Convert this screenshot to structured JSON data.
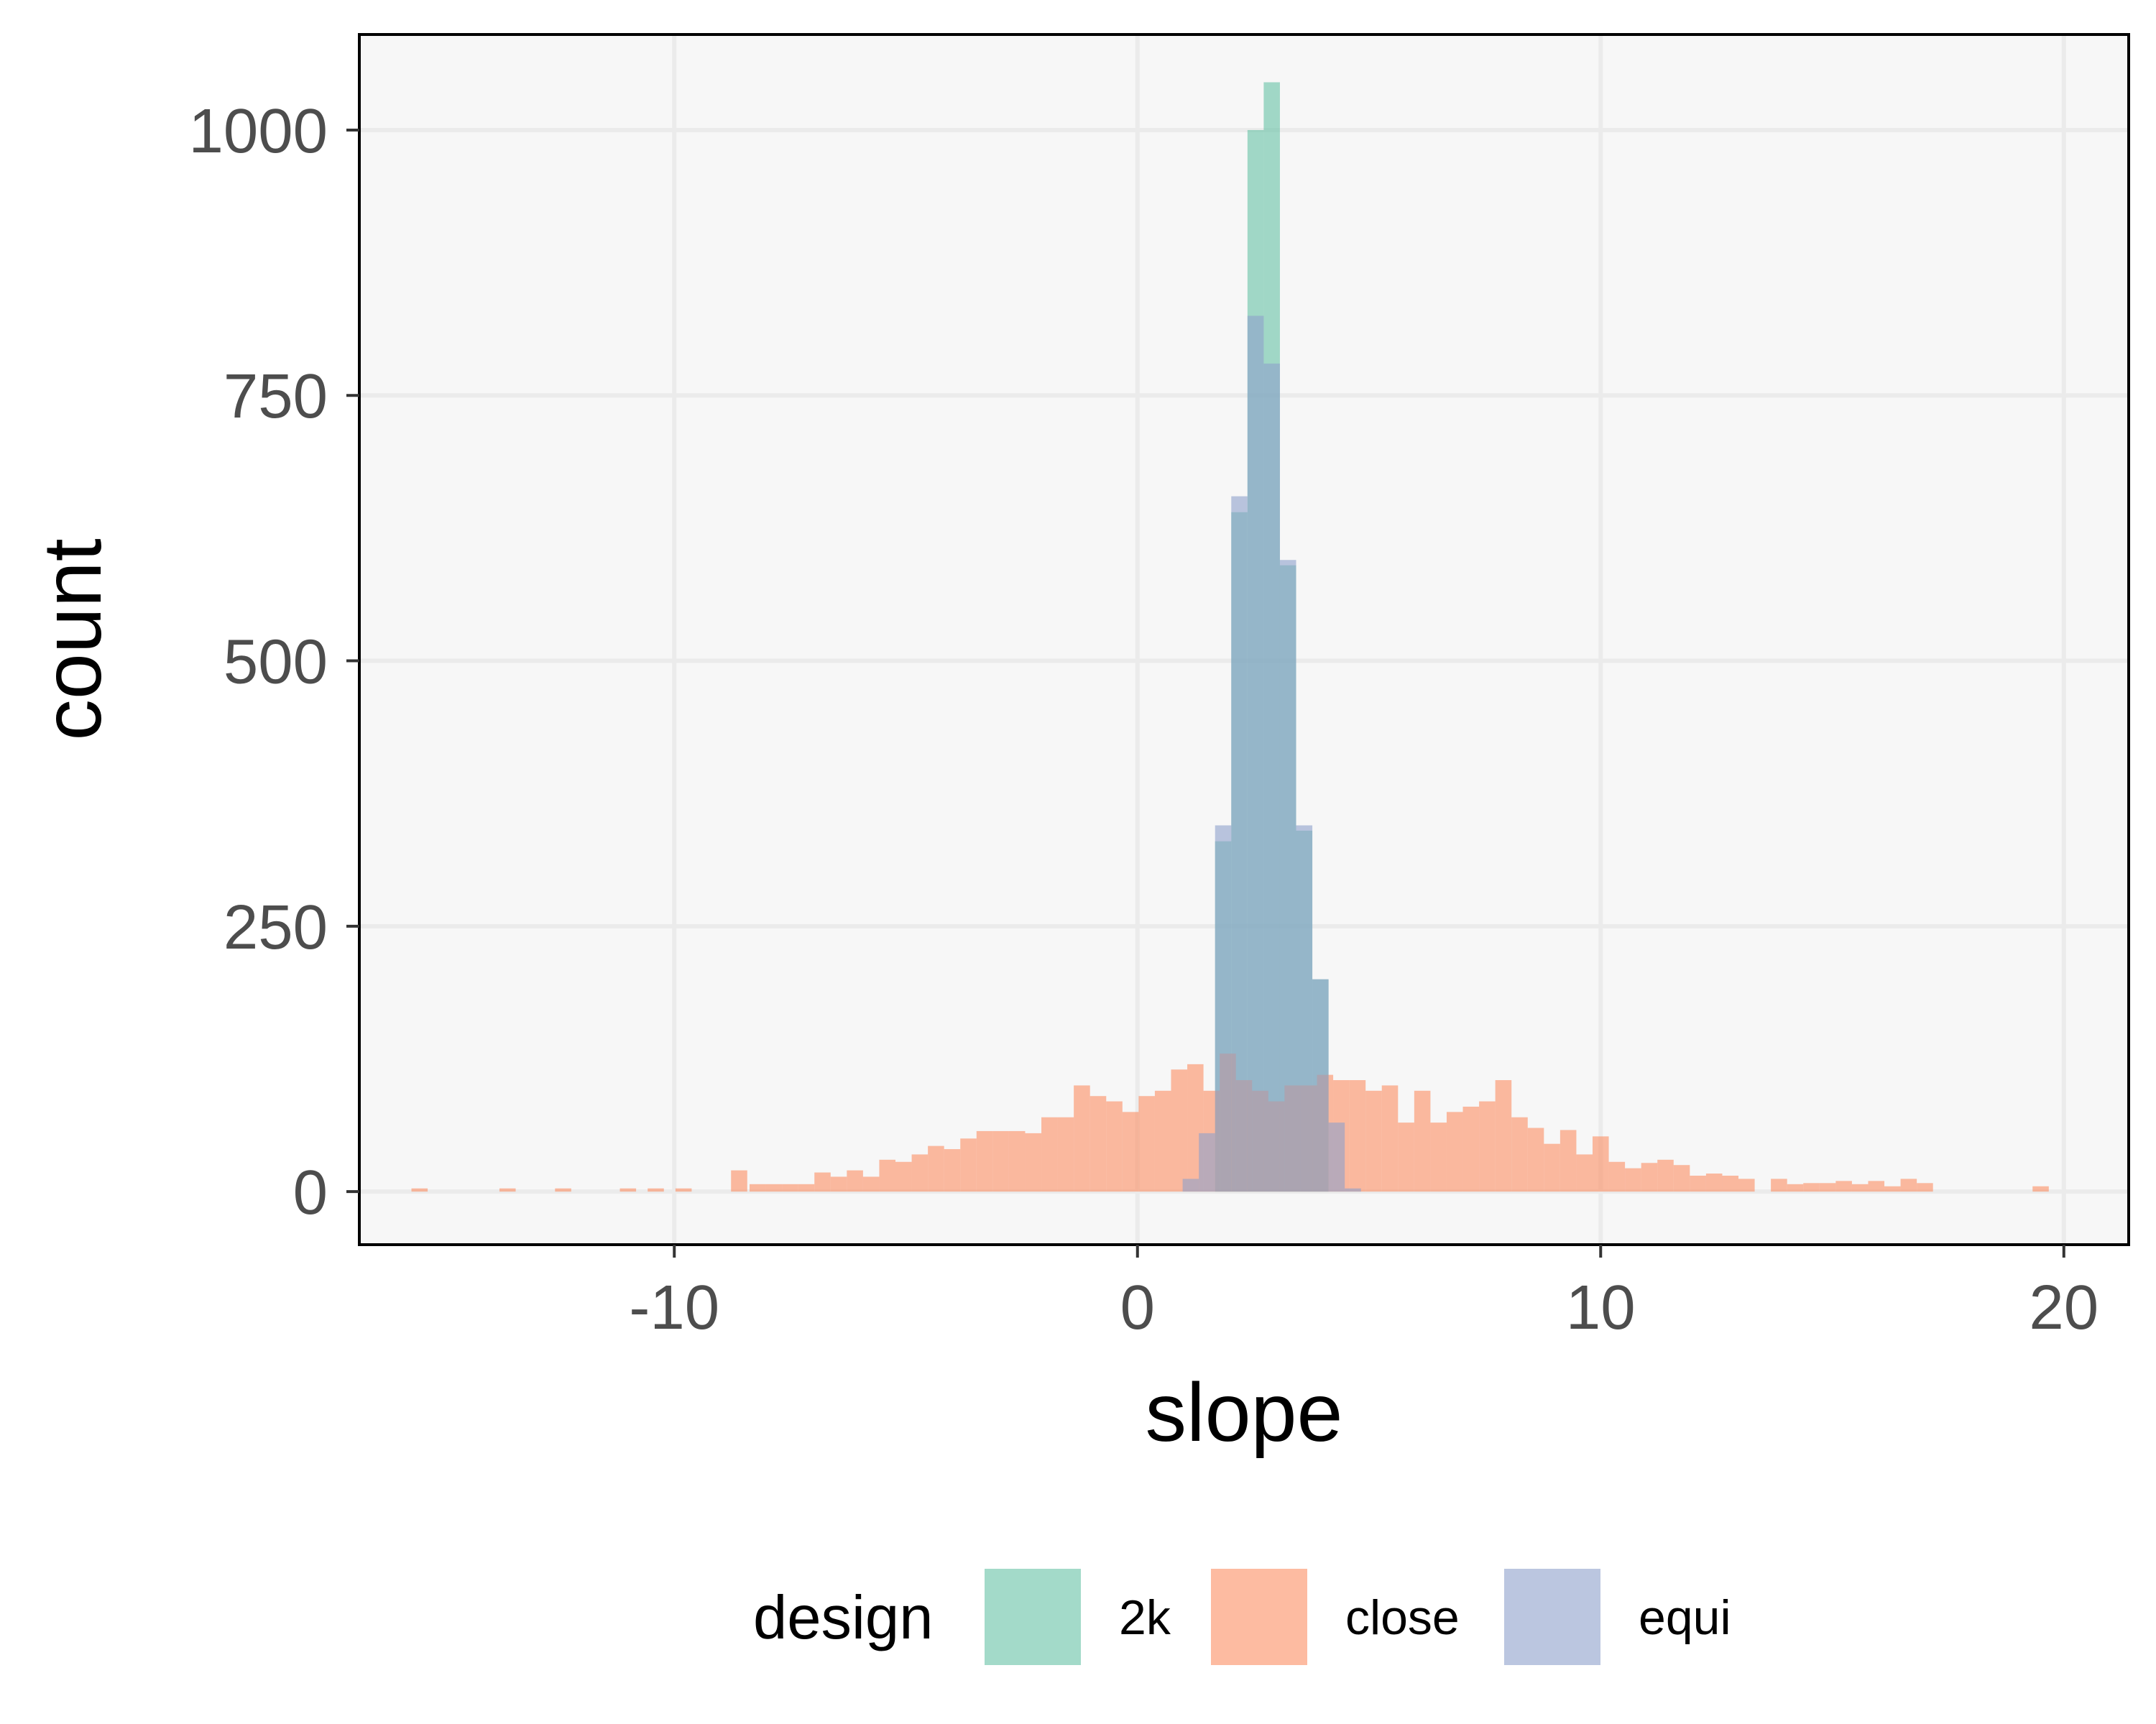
{
  "chart_data": {
    "type": "bar",
    "subtype": "overlaid histogram",
    "xlabel": "slope",
    "ylabel": "count",
    "xlim": [
      -16.8,
      21.4
    ],
    "ylim": [
      -50,
      1090
    ],
    "x_ticks": [
      -10,
      0,
      10,
      20
    ],
    "x_tick_labels": [
      "-10",
      "0",
      "10",
      "20"
    ],
    "y_ticks": [
      0,
      250,
      500,
      750,
      1000
    ],
    "y_tick_labels": [
      "0",
      "250",
      "500",
      "750",
      "1000"
    ],
    "grid": true,
    "legend_position": "bottom",
    "legend_title": "design",
    "bin_width": 0.35,
    "series": [
      {
        "name": "2k",
        "color": "#66c2a5",
        "bins": [
          [
            1.85,
            330
          ],
          [
            2.2,
            640
          ],
          [
            2.55,
            1000
          ],
          [
            2.9,
            1045
          ],
          [
            3.25,
            590
          ],
          [
            3.6,
            340
          ],
          [
            3.95,
            200
          ]
        ]
      },
      {
        "name": "close",
        "color": "#fc8d62",
        "bins": [
          [
            -15.5,
            3
          ],
          [
            -13.6,
            3
          ],
          [
            -12.4,
            3
          ],
          [
            -11.0,
            3
          ],
          [
            -10.4,
            3
          ],
          [
            -9.8,
            3
          ],
          [
            -8.6,
            20
          ],
          [
            -8.2,
            7
          ],
          [
            -7.85,
            7
          ],
          [
            -7.5,
            7
          ],
          [
            -7.15,
            7
          ],
          [
            -6.8,
            18
          ],
          [
            -6.45,
            14
          ],
          [
            -6.1,
            20
          ],
          [
            -5.75,
            14
          ],
          [
            -5.4,
            30
          ],
          [
            -5.05,
            28
          ],
          [
            -4.7,
            35
          ],
          [
            -4.35,
            43
          ],
          [
            -4.0,
            40
          ],
          [
            -3.65,
            50
          ],
          [
            -3.3,
            57
          ],
          [
            -2.95,
            57
          ],
          [
            -2.6,
            57
          ],
          [
            -2.25,
            55
          ],
          [
            -1.9,
            70
          ],
          [
            -1.55,
            70
          ],
          [
            -1.2,
            100
          ],
          [
            -0.85,
            90
          ],
          [
            -0.5,
            85
          ],
          [
            -0.15,
            75
          ],
          [
            0.2,
            90
          ],
          [
            0.55,
            95
          ],
          [
            0.9,
            115
          ],
          [
            1.25,
            120
          ],
          [
            1.6,
            95
          ],
          [
            1.95,
            130
          ],
          [
            2.3,
            105
          ],
          [
            2.65,
            95
          ],
          [
            3.0,
            85
          ],
          [
            3.35,
            100
          ],
          [
            3.7,
            100
          ],
          [
            4.05,
            110
          ],
          [
            4.4,
            105
          ],
          [
            4.75,
            105
          ],
          [
            5.1,
            95
          ],
          [
            5.45,
            100
          ],
          [
            5.8,
            65
          ],
          [
            6.15,
            95
          ],
          [
            6.5,
            65
          ],
          [
            6.85,
            75
          ],
          [
            7.2,
            80
          ],
          [
            7.55,
            85
          ],
          [
            7.9,
            105
          ],
          [
            8.25,
            70
          ],
          [
            8.6,
            60
          ],
          [
            8.95,
            45
          ],
          [
            9.3,
            58
          ],
          [
            9.65,
            35
          ],
          [
            10.0,
            52
          ],
          [
            10.35,
            28
          ],
          [
            10.7,
            22
          ],
          [
            11.05,
            27
          ],
          [
            11.4,
            30
          ],
          [
            11.75,
            25
          ],
          [
            12.1,
            15
          ],
          [
            12.45,
            17
          ],
          [
            12.8,
            15
          ],
          [
            13.15,
            12
          ],
          [
            13.85,
            12
          ],
          [
            14.2,
            7
          ],
          [
            14.55,
            8
          ],
          [
            14.9,
            8
          ],
          [
            15.25,
            10
          ],
          [
            15.6,
            7
          ],
          [
            15.95,
            10
          ],
          [
            16.3,
            5
          ],
          [
            16.65,
            12
          ],
          [
            17.0,
            8
          ],
          [
            19.5,
            5
          ]
        ]
      },
      {
        "name": "equi",
        "color": "#8da0cb",
        "bins": [
          [
            1.15,
            12
          ],
          [
            1.5,
            55
          ],
          [
            1.85,
            345
          ],
          [
            2.2,
            655
          ],
          [
            2.55,
            825
          ],
          [
            2.9,
            780
          ],
          [
            3.25,
            595
          ],
          [
            3.6,
            345
          ],
          [
            3.95,
            200
          ],
          [
            4.3,
            65
          ],
          [
            4.65,
            3
          ]
        ]
      }
    ]
  }
}
